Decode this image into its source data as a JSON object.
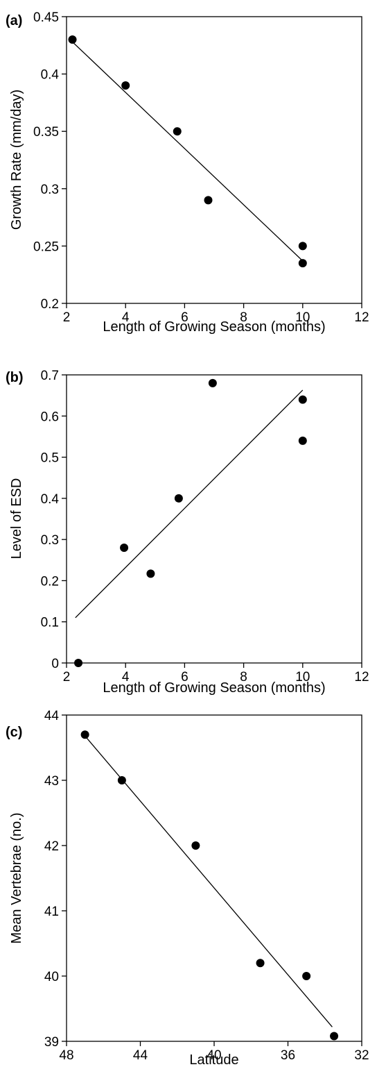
{
  "chart_data": [
    {
      "type": "scatter",
      "panel_label": "(a)",
      "xlabel": "Length of Growing Season (months)",
      "ylabel": "Growth Rate (mm/day)",
      "xlim": [
        2,
        12
      ],
      "ylim": [
        0.2,
        0.45
      ],
      "xticks": [
        2,
        4,
        6,
        8,
        10,
        12
      ],
      "yticks": [
        0.2,
        0.25,
        0.3,
        0.35,
        0.4,
        0.45
      ],
      "xtick_labels": [
        "2",
        "4",
        "6",
        "8",
        "10",
        "12"
      ],
      "ytick_labels": [
        "0.2",
        "0.25",
        "0.3",
        "0.35",
        "0.4",
        "0.45"
      ],
      "x_reversed": false,
      "points": [
        {
          "x": 2.2,
          "y": 0.43
        },
        {
          "x": 4.0,
          "y": 0.39
        },
        {
          "x": 5.75,
          "y": 0.35
        },
        {
          "x": 6.8,
          "y": 0.29
        },
        {
          "x": 10.0,
          "y": 0.25
        },
        {
          "x": 10.0,
          "y": 0.235
        }
      ],
      "fit_line": [
        [
          2.2,
          0.428
        ],
        [
          10.0,
          0.237
        ]
      ]
    },
    {
      "type": "scatter",
      "panel_label": "(b)",
      "xlabel": "Length of Growing Season (months)",
      "ylabel": "Level of ESD",
      "xlim": [
        2,
        12
      ],
      "ylim": [
        0,
        0.7
      ],
      "xticks": [
        2,
        4,
        6,
        8,
        10,
        12
      ],
      "yticks": [
        0,
        0.1,
        0.2,
        0.3,
        0.4,
        0.5,
        0.6,
        0.7
      ],
      "xtick_labels": [
        "2",
        "4",
        "6",
        "8",
        "10",
        "12"
      ],
      "ytick_labels": [
        "0",
        "0.1",
        "0.2",
        "0.3",
        "0.4",
        "0.5",
        "0.6",
        "0.7"
      ],
      "x_reversed": false,
      "points": [
        {
          "x": 2.4,
          "y": 0.0
        },
        {
          "x": 3.95,
          "y": 0.28
        },
        {
          "x": 4.85,
          "y": 0.217
        },
        {
          "x": 5.8,
          "y": 0.4
        },
        {
          "x": 6.95,
          "y": 0.68
        },
        {
          "x": 10.0,
          "y": 0.64
        },
        {
          "x": 10.0,
          "y": 0.54
        }
      ],
      "fit_line": [
        [
          2.3,
          0.11
        ],
        [
          10.0,
          0.663
        ]
      ]
    },
    {
      "type": "scatter",
      "panel_label": "(c)",
      "xlabel": "Latitude",
      "ylabel": "Mean Vertebrae (no.)",
      "xlim": [
        48,
        32
      ],
      "ylim": [
        39,
        44
      ],
      "xticks": [
        48,
        44,
        40,
        36,
        32
      ],
      "yticks": [
        39,
        40,
        41,
        42,
        43,
        44
      ],
      "xtick_labels": [
        "48",
        "44",
        "40",
        "36",
        "32"
      ],
      "ytick_labels": [
        "39",
        "40",
        "41",
        "42",
        "43",
        "44"
      ],
      "x_reversed": true,
      "points": [
        {
          "x": 47.0,
          "y": 43.7
        },
        {
          "x": 45.0,
          "y": 43.0
        },
        {
          "x": 41.0,
          "y": 42.0
        },
        {
          "x": 37.5,
          "y": 40.2
        },
        {
          "x": 35.0,
          "y": 40.0
        },
        {
          "x": 33.5,
          "y": 39.08
        }
      ],
      "fit_line": [
        [
          47.0,
          43.68
        ],
        [
          33.6,
          39.22
        ]
      ]
    }
  ]
}
